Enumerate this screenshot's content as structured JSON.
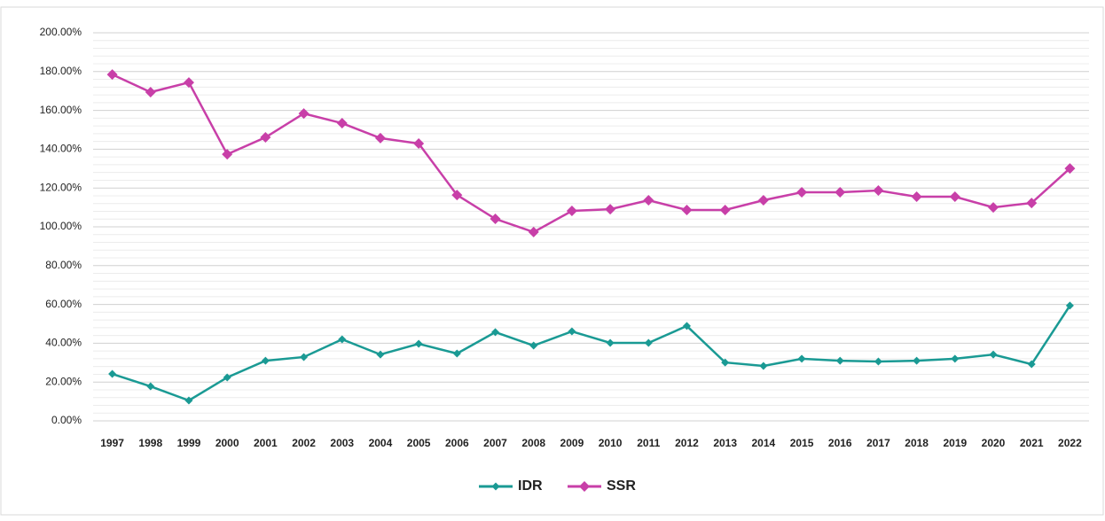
{
  "chart_data": {
    "type": "line",
    "categories": [
      "1997",
      "1998",
      "1999",
      "2000",
      "2001",
      "2002",
      "2003",
      "2004",
      "2005",
      "2006",
      "2007",
      "2008",
      "2009",
      "2010",
      "2011",
      "2012",
      "2013",
      "2014",
      "2015",
      "2016",
      "2017",
      "2018",
      "2019",
      "2020",
      "2021",
      "2022"
    ],
    "series": [
      {
        "name": "IDR",
        "color": "#1a9a94",
        "values": [
          24.2,
          17.8,
          10.5,
          22.4,
          31,
          32.9,
          42,
          34.2,
          39.7,
          34.7,
          45.7,
          38.8,
          46.1,
          40.2,
          40.2,
          48.9,
          30.1,
          28.3,
          32,
          31,
          30.6,
          31,
          32,
          34.2,
          29.2,
          59.4
        ]
      },
      {
        "name": "SSR",
        "color": "#c83fa8",
        "values": [
          178.5,
          169.4,
          174.4,
          137.4,
          146.1,
          158.4,
          153.4,
          145.7,
          142.9,
          116.4,
          104.1,
          97.3,
          108.2,
          109.1,
          113.7,
          108.7,
          108.7,
          113.7,
          117.8,
          117.8,
          118.7,
          115.5,
          115.5,
          110,
          112.3,
          130.1
        ]
      }
    ],
    "ylim": [
      0,
      200
    ],
    "yticks": [
      {
        "value": 0,
        "label": "0.00%"
      },
      {
        "value": 20,
        "label": "20.00%"
      },
      {
        "value": 40,
        "label": "40.00%"
      },
      {
        "value": 60,
        "label": "60.00%"
      },
      {
        "value": 80,
        "label": "80.00%"
      },
      {
        "value": 100,
        "label": "100.00%"
      },
      {
        "value": 120,
        "label": "120.00%"
      },
      {
        "value": 140,
        "label": "140.00%"
      },
      {
        "value": 160,
        "label": "160.00%"
      },
      {
        "value": 180,
        "label": "180.00%"
      },
      {
        "value": 200,
        "label": "200.00%"
      }
    ],
    "grid": true,
    "minor_grid": true,
    "legend": "bottom"
  }
}
